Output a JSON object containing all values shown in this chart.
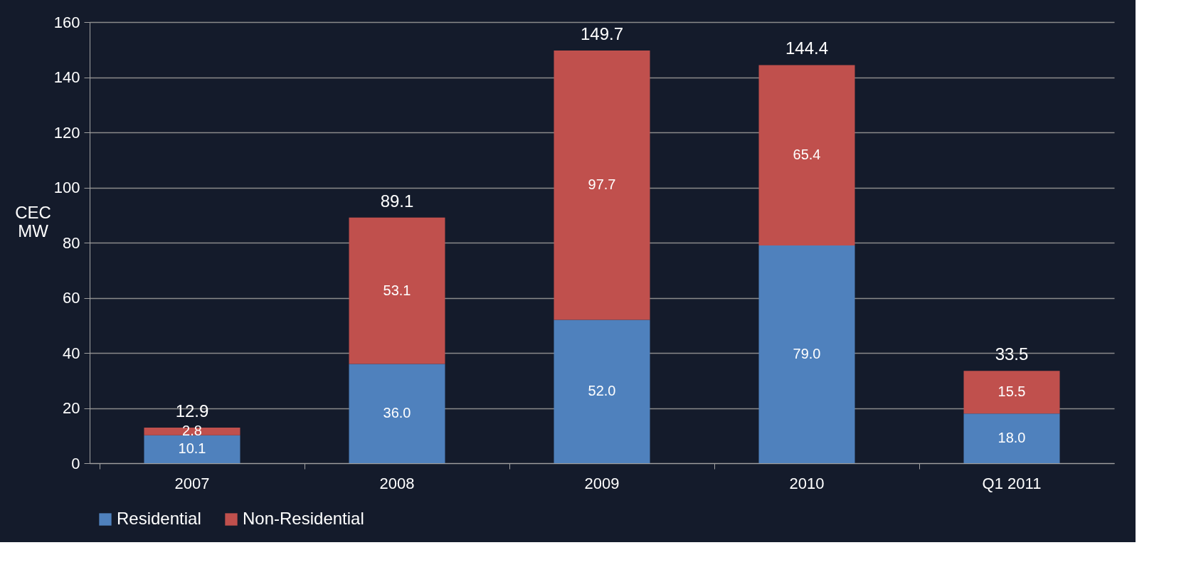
{
  "chart_data": {
    "type": "bar",
    "stacked": true,
    "ylabel": "CEC MW",
    "categories": [
      "2007",
      "2008",
      "2009",
      "2010",
      "Q1 2011"
    ],
    "series": [
      {
        "name": "Residential",
        "color": "#4f81bd",
        "values": [
          10.1,
          36.0,
          52.0,
          79.0,
          18.0
        ]
      },
      {
        "name": "Non-Residential",
        "color": "#c0504d",
        "values": [
          2.8,
          53.1,
          97.7,
          65.4,
          15.5
        ]
      }
    ],
    "value_labels": [
      [
        "10.1",
        "36.0",
        "52.0",
        "79.0",
        "18.0"
      ],
      [
        "2.8",
        "53.1",
        "97.7",
        "65.4",
        "15.5"
      ]
    ],
    "totals": [
      "12.9",
      "89.1",
      "149.7",
      "144.4",
      "33.5"
    ],
    "ylim": [
      0,
      160
    ],
    "yticks": [
      0,
      20,
      40,
      60,
      80,
      100,
      120,
      140,
      160
    ],
    "grid": "y",
    "legend": "bottom"
  }
}
